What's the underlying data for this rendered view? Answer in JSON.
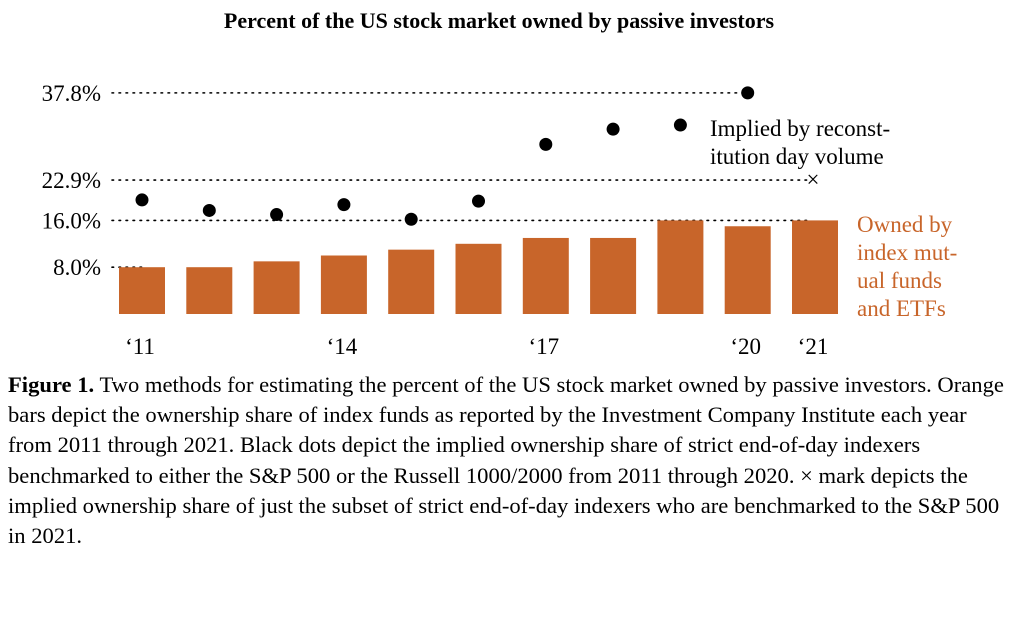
{
  "chart_data": {
    "type": "bar",
    "title": "Percent of the US stock market owned by passive investors",
    "x": [
      2011,
      2012,
      2013,
      2014,
      2015,
      2016,
      2017,
      2018,
      2019,
      2020,
      2021
    ],
    "x_tick_labels": [
      {
        "year": 2011,
        "label": "‘11"
      },
      {
        "year": 2014,
        "label": "‘14"
      },
      {
        "year": 2017,
        "label": "‘17"
      },
      {
        "year": 2020,
        "label": "‘20"
      },
      {
        "year": 2021,
        "label": "‘21"
      }
    ],
    "y_ticks": [
      {
        "value": 8.0,
        "label": "8.0%"
      },
      {
        "value": 16.0,
        "label": "16.0%"
      },
      {
        "value": 22.9,
        "label": "22.9%"
      },
      {
        "value": 37.8,
        "label": "37.8%"
      }
    ],
    "ylim": [
      0,
      40
    ],
    "series": [
      {
        "name": "Owned by index mutual funds and ETFs",
        "kind": "bar",
        "color": "#c8652a",
        "label_lines": [
          "Owned by",
          "index mut-",
          "ual funds",
          "and ETFs"
        ],
        "values": [
          8.0,
          8.0,
          9.0,
          10.0,
          11.0,
          12.0,
          13.0,
          13.0,
          16.0,
          15.0,
          16.0
        ]
      },
      {
        "name": "Implied by reconstitution day volume",
        "kind": "scatter",
        "marker": "dot",
        "color": "#000000",
        "label_lines": [
          "Implied by reconst-",
          "itution day volume"
        ],
        "x": [
          2011,
          2012,
          2013,
          2014,
          2015,
          2016,
          2017,
          2018,
          2019,
          2020
        ],
        "values": [
          19.5,
          17.7,
          17.0,
          18.7,
          16.2,
          19.3,
          29.0,
          31.6,
          32.3,
          37.8
        ]
      },
      {
        "name": "S&P 500 subset",
        "kind": "scatter",
        "marker": "×",
        "color": "#000000",
        "x": [
          2021
        ],
        "values": [
          22.9
        ]
      }
    ],
    "grid": "dotted reference lines at 8.0%, 16.0%, 22.9%, 37.8%"
  },
  "caption": {
    "figure_label": "Figure 1.",
    "text": "Two methods for estimating the percent of the US stock market owned by passive investors. Orange bars depict the ownership share of index funds as reported by the Investment Company Institute each year from 2011 through 2021. Black dots depict the implied ownership share of strict end-of-day indexers benchmarked to either the S&P 500 or the Russell 1000/2000 from 2011 through 2020. × mark depicts the implied ownership share of just the subset of strict end-of-day indexers who are benchmarked to the S&P 500 in 2021."
  }
}
